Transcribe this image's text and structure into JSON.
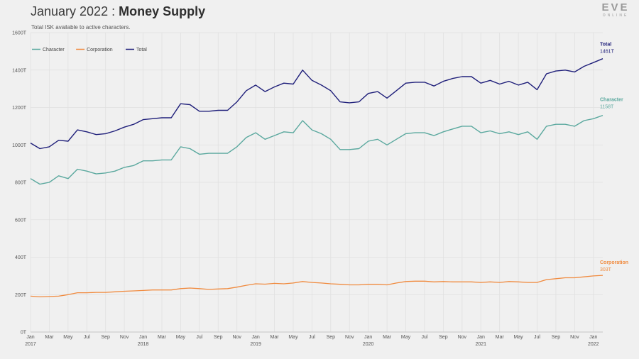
{
  "header": {
    "title_month": "January 2022",
    "title_sep": " : ",
    "title_main": "Money Supply",
    "subtitle": "Total ISK available to active characters."
  },
  "logo": {
    "big": "EVE",
    "small": "ONLINE"
  },
  "colors": {
    "Character": "#5aa89e",
    "Corporation": "#f08a3e",
    "Total": "#1f1f7a",
    "grid": "#e0e0e0"
  },
  "chart_data": {
    "type": "line",
    "title": "January 2022 : Money Supply",
    "subtitle": "Total ISK available to active characters.",
    "ylim": [
      0,
      1600
    ],
    "y_ticks": [
      0,
      200,
      400,
      600,
      800,
      1000,
      1200,
      1400,
      1600
    ],
    "y_tick_labels": [
      "0T",
      "200T",
      "400T",
      "600T",
      "800T",
      "1000T",
      "1200T",
      "1400T",
      "1600T"
    ],
    "x_range": [
      "2017-01",
      "2022-02"
    ],
    "x_ticks": [
      "2017-01",
      "2017-03",
      "2017-05",
      "2017-07",
      "2017-09",
      "2017-11",
      "2018-01",
      "2018-03",
      "2018-05",
      "2018-07",
      "2018-09",
      "2018-11",
      "2019-01",
      "2019-03",
      "2019-05",
      "2019-07",
      "2019-09",
      "2019-11",
      "2020-01",
      "2020-03",
      "2020-05",
      "2020-07",
      "2020-09",
      "2020-11",
      "2021-01",
      "2021-03",
      "2021-05",
      "2021-07",
      "2021-09",
      "2021-11",
      "2022-01"
    ],
    "x_tick_labels": [
      "Jan",
      "Mar",
      "May",
      "Jul",
      "Sep",
      "Nov",
      "Jan",
      "Mar",
      "May",
      "Jul",
      "Sep",
      "Nov",
      "Jan",
      "Mar",
      "May",
      "Jul",
      "Sep",
      "Nov",
      "Jan",
      "Mar",
      "May",
      "Jul",
      "Sep",
      "Nov",
      "Jan",
      "Mar",
      "May",
      "Jul",
      "Sep",
      "Nov",
      "Jan"
    ],
    "year_ticks": [
      "2017-01",
      "2018-01",
      "2019-01",
      "2020-01",
      "2021-01",
      "2022-01"
    ],
    "year_labels": [
      "2017",
      "2018",
      "2019",
      "2020",
      "2021",
      "2022"
    ],
    "legend_placement": "top-left",
    "grid": true,
    "series": [
      {
        "name": "Character",
        "end_label": "1158T",
        "points": [
          [
            "2017-01",
            820
          ],
          [
            "2017-02",
            790
          ],
          [
            "2017-03",
            800
          ],
          [
            "2017-04",
            835
          ],
          [
            "2017-05",
            820
          ],
          [
            "2017-06",
            870
          ],
          [
            "2017-07",
            860
          ],
          [
            "2017-08",
            845
          ],
          [
            "2017-09",
            850
          ],
          [
            "2017-10",
            860
          ],
          [
            "2017-11",
            880
          ],
          [
            "2017-12",
            890
          ],
          [
            "2018-01",
            915
          ],
          [
            "2018-02",
            915
          ],
          [
            "2018-03",
            920
          ],
          [
            "2018-04",
            920
          ],
          [
            "2018-05",
            990
          ],
          [
            "2018-06",
            980
          ],
          [
            "2018-07",
            950
          ],
          [
            "2018-08",
            955
          ],
          [
            "2018-09",
            955
          ],
          [
            "2018-10",
            955
          ],
          [
            "2018-11",
            990
          ],
          [
            "2018-12",
            1040
          ],
          [
            "2019-01",
            1065
          ],
          [
            "2019-02",
            1030
          ],
          [
            "2019-03",
            1050
          ],
          [
            "2019-04",
            1070
          ],
          [
            "2019-05",
            1065
          ],
          [
            "2019-06",
            1130
          ],
          [
            "2019-07",
            1080
          ],
          [
            "2019-08",
            1060
          ],
          [
            "2019-09",
            1030
          ],
          [
            "2019-10",
            975
          ],
          [
            "2019-11",
            975
          ],
          [
            "2019-12",
            980
          ],
          [
            "2020-01",
            1020
          ],
          [
            "2020-02",
            1030
          ],
          [
            "2020-03",
            1000
          ],
          [
            "2020-04",
            1030
          ],
          [
            "2020-05",
            1060
          ],
          [
            "2020-06",
            1065
          ],
          [
            "2020-07",
            1065
          ],
          [
            "2020-08",
            1050
          ],
          [
            "2020-09",
            1070
          ],
          [
            "2020-10",
            1085
          ],
          [
            "2020-11",
            1100
          ],
          [
            "2020-12",
            1100
          ],
          [
            "2021-01",
            1065
          ],
          [
            "2021-02",
            1075
          ],
          [
            "2021-03",
            1060
          ],
          [
            "2021-04",
            1070
          ],
          [
            "2021-05",
            1055
          ],
          [
            "2021-06",
            1070
          ],
          [
            "2021-07",
            1030
          ],
          [
            "2021-08",
            1100
          ],
          [
            "2021-09",
            1110
          ],
          [
            "2021-10",
            1110
          ],
          [
            "2021-11",
            1100
          ],
          [
            "2021-12",
            1130
          ],
          [
            "2022-01",
            1140
          ],
          [
            "2022-02",
            1158
          ]
        ]
      },
      {
        "name": "Corporation",
        "end_label": "303T",
        "points": [
          [
            "2017-01",
            192
          ],
          [
            "2017-02",
            188
          ],
          [
            "2017-03",
            190
          ],
          [
            "2017-04",
            192
          ],
          [
            "2017-05",
            200
          ],
          [
            "2017-06",
            210
          ],
          [
            "2017-07",
            210
          ],
          [
            "2017-08",
            212
          ],
          [
            "2017-09",
            212
          ],
          [
            "2017-10",
            215
          ],
          [
            "2017-11",
            218
          ],
          [
            "2017-12",
            220
          ],
          [
            "2018-01",
            222
          ],
          [
            "2018-02",
            225
          ],
          [
            "2018-03",
            225
          ],
          [
            "2018-04",
            225
          ],
          [
            "2018-05",
            232
          ],
          [
            "2018-06",
            235
          ],
          [
            "2018-07",
            232
          ],
          [
            "2018-08",
            228
          ],
          [
            "2018-09",
            230
          ],
          [
            "2018-10",
            232
          ],
          [
            "2018-11",
            240
          ],
          [
            "2018-12",
            250
          ],
          [
            "2019-01",
            258
          ],
          [
            "2019-02",
            256
          ],
          [
            "2019-03",
            260
          ],
          [
            "2019-04",
            258
          ],
          [
            "2019-05",
            262
          ],
          [
            "2019-06",
            270
          ],
          [
            "2019-07",
            265
          ],
          [
            "2019-08",
            262
          ],
          [
            "2019-09",
            258
          ],
          [
            "2019-10",
            255
          ],
          [
            "2019-11",
            252
          ],
          [
            "2019-12",
            252
          ],
          [
            "2020-01",
            255
          ],
          [
            "2020-02",
            255
          ],
          [
            "2020-03",
            252
          ],
          [
            "2020-04",
            262
          ],
          [
            "2020-05",
            270
          ],
          [
            "2020-06",
            272
          ],
          [
            "2020-07",
            272
          ],
          [
            "2020-08",
            268
          ],
          [
            "2020-09",
            270
          ],
          [
            "2020-10",
            268
          ],
          [
            "2020-11",
            268
          ],
          [
            "2020-12",
            268
          ],
          [
            "2021-01",
            265
          ],
          [
            "2021-02",
            268
          ],
          [
            "2021-03",
            265
          ],
          [
            "2021-04",
            270
          ],
          [
            "2021-05",
            268
          ],
          [
            "2021-06",
            265
          ],
          [
            "2021-07",
            265
          ],
          [
            "2021-08",
            280
          ],
          [
            "2021-09",
            285
          ],
          [
            "2021-10",
            290
          ],
          [
            "2021-11",
            290
          ],
          [
            "2021-12",
            295
          ],
          [
            "2022-01",
            300
          ],
          [
            "2022-02",
            303
          ]
        ]
      },
      {
        "name": "Total",
        "end_label": "1461T",
        "points": [
          [
            "2017-01",
            1010
          ],
          [
            "2017-02",
            980
          ],
          [
            "2017-03",
            990
          ],
          [
            "2017-04",
            1025
          ],
          [
            "2017-05",
            1020
          ],
          [
            "2017-06",
            1080
          ],
          [
            "2017-07",
            1070
          ],
          [
            "2017-08",
            1055
          ],
          [
            "2017-09",
            1060
          ],
          [
            "2017-10",
            1075
          ],
          [
            "2017-11",
            1095
          ],
          [
            "2017-12",
            1110
          ],
          [
            "2018-01",
            1135
          ],
          [
            "2018-02",
            1140
          ],
          [
            "2018-03",
            1145
          ],
          [
            "2018-04",
            1145
          ],
          [
            "2018-05",
            1220
          ],
          [
            "2018-06",
            1215
          ],
          [
            "2018-07",
            1180
          ],
          [
            "2018-08",
            1180
          ],
          [
            "2018-09",
            1185
          ],
          [
            "2018-10",
            1185
          ],
          [
            "2018-11",
            1230
          ],
          [
            "2018-12",
            1290
          ],
          [
            "2019-01",
            1320
          ],
          [
            "2019-02",
            1285
          ],
          [
            "2019-03",
            1310
          ],
          [
            "2019-04",
            1330
          ],
          [
            "2019-05",
            1325
          ],
          [
            "2019-06",
            1400
          ],
          [
            "2019-07",
            1345
          ],
          [
            "2019-08",
            1320
          ],
          [
            "2019-09",
            1290
          ],
          [
            "2019-10",
            1230
          ],
          [
            "2019-11",
            1225
          ],
          [
            "2019-12",
            1230
          ],
          [
            "2020-01",
            1275
          ],
          [
            "2020-02",
            1285
          ],
          [
            "2020-03",
            1250
          ],
          [
            "2020-04",
            1290
          ],
          [
            "2020-05",
            1330
          ],
          [
            "2020-06",
            1335
          ],
          [
            "2020-07",
            1335
          ],
          [
            "2020-08",
            1315
          ],
          [
            "2020-09",
            1340
          ],
          [
            "2020-10",
            1355
          ],
          [
            "2020-11",
            1365
          ],
          [
            "2020-12",
            1365
          ],
          [
            "2021-01",
            1330
          ],
          [
            "2021-02",
            1345
          ],
          [
            "2021-03",
            1325
          ],
          [
            "2021-04",
            1340
          ],
          [
            "2021-05",
            1320
          ],
          [
            "2021-06",
            1335
          ],
          [
            "2021-07",
            1295
          ],
          [
            "2021-08",
            1380
          ],
          [
            "2021-09",
            1395
          ],
          [
            "2021-10",
            1400
          ],
          [
            "2021-11",
            1390
          ],
          [
            "2021-12",
            1420
          ],
          [
            "2022-01",
            1440
          ],
          [
            "2022-02",
            1461
          ]
        ]
      }
    ]
  }
}
